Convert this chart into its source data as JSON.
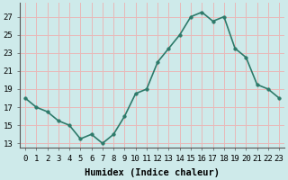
{
  "x": [
    0,
    1,
    2,
    3,
    4,
    5,
    6,
    7,
    8,
    9,
    10,
    11,
    12,
    13,
    14,
    15,
    16,
    17,
    18,
    19,
    20,
    21,
    22,
    23
  ],
  "y": [
    18.0,
    17.0,
    16.5,
    15.5,
    15.0,
    13.5,
    14.0,
    13.0,
    14.0,
    16.0,
    18.5,
    19.0,
    22.0,
    23.5,
    25.0,
    27.0,
    27.5,
    26.5,
    27.0,
    23.5,
    22.5,
    19.5,
    19.0,
    18.0
  ],
  "line_color": "#2d7a6a",
  "marker_color": "#2d7a6a",
  "bg_color": "#ceeaea",
  "grid_color": "#e8b8b8",
  "xlabel": "Humidex (Indice chaleur)",
  "xlabel_fontsize": 7.5,
  "tick_fontsize": 6.5,
  "ylim": [
    12.5,
    28.5
  ],
  "yticks": [
    13,
    15,
    17,
    19,
    21,
    23,
    25,
    27
  ],
  "xticks": [
    0,
    1,
    2,
    3,
    4,
    5,
    6,
    7,
    8,
    9,
    10,
    11,
    12,
    13,
    14,
    15,
    16,
    17,
    18,
    19,
    20,
    21,
    22,
    23
  ],
  "xtick_labels": [
    "0",
    "1",
    "2",
    "3",
    "4",
    "5",
    "6",
    "7",
    "8",
    "9",
    "10",
    "11",
    "12",
    "13",
    "14",
    "15",
    "16",
    "17",
    "18",
    "19",
    "20",
    "21",
    "22",
    "23"
  ],
  "linewidth": 1.2,
  "markersize": 2.5,
  "spine_color": "#555555"
}
